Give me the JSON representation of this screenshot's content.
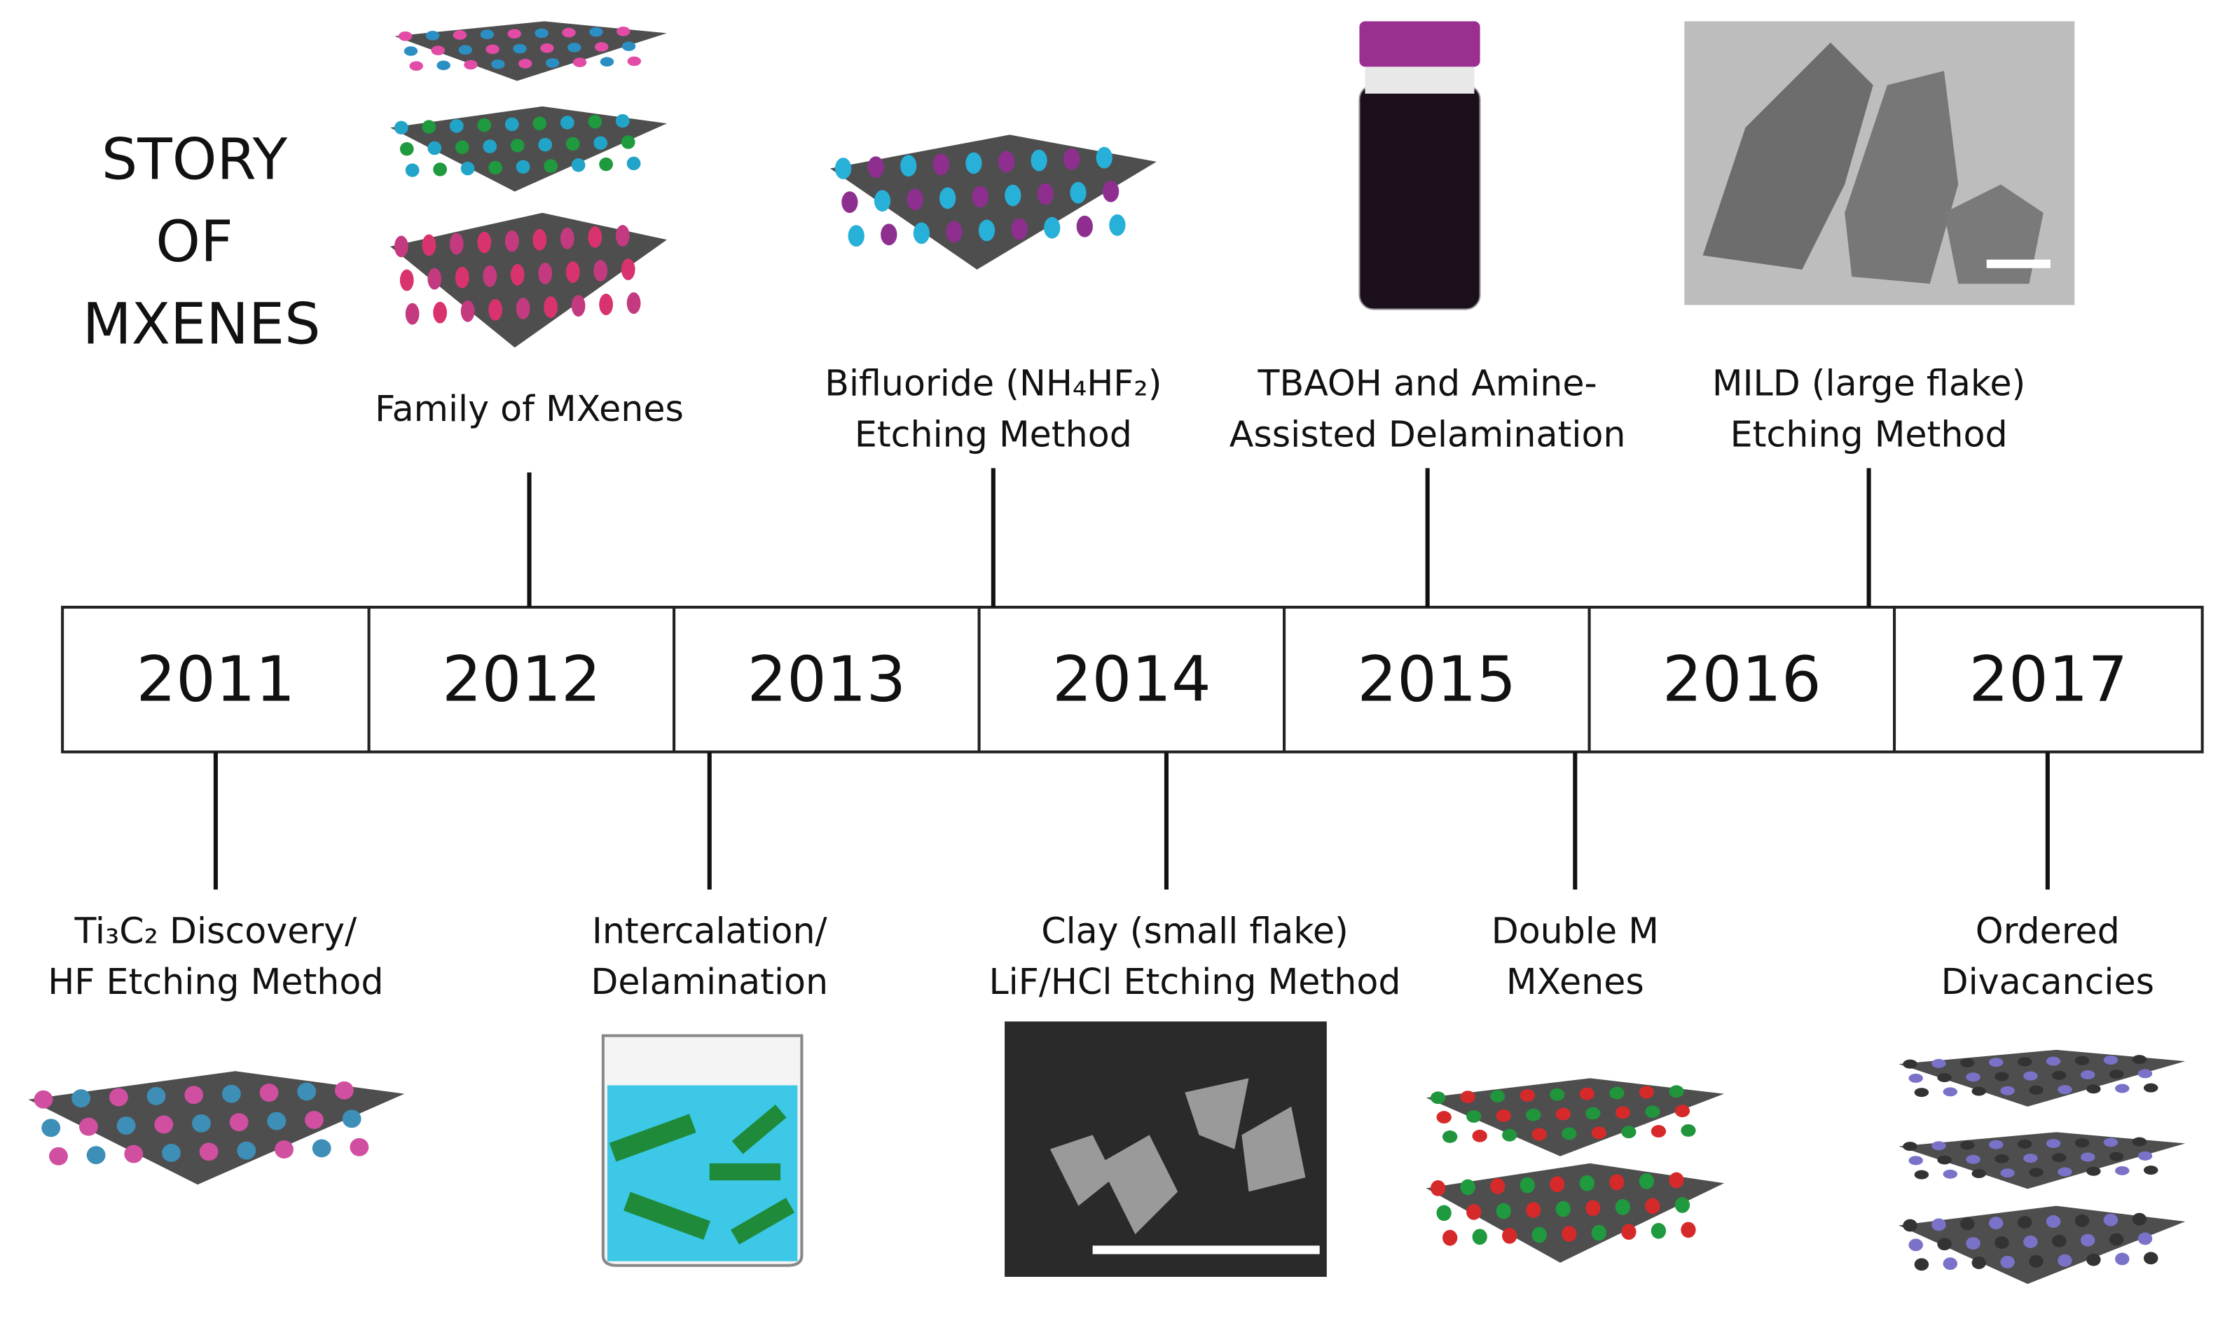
{
  "title": [
    "STORY",
    "OF",
    "MXENES"
  ],
  "years": [
    "2011",
    "2012",
    "2013",
    "2014",
    "2015",
    "2016",
    "2017"
  ],
  "top_events": [
    {
      "lines": [
        "Family of MXenes"
      ]
    },
    {
      "lines": [
        "Bifluoride (NH₄HF₂)",
        "Etching Method"
      ]
    },
    {
      "lines": [
        "TBAOH and Amine-",
        "Assisted Delamination"
      ]
    },
    {
      "lines": [
        "MILD (large flake)",
        "Etching Method"
      ]
    }
  ],
  "bottom_events": [
    {
      "lines": [
        "Ti₃C₂ Discovery/",
        "HF Etching Method"
      ]
    },
    {
      "lines": [
        "Intercalation/",
        "Delamination"
      ]
    },
    {
      "lines": [
        "Clay  (small flake)",
        "LiF/HCl Etching Method"
      ]
    },
    {
      "lines": [
        "Double M",
        "MXenes"
      ]
    },
    {
      "lines": [
        "Ordered",
        "Divacancies"
      ]
    }
  ]
}
